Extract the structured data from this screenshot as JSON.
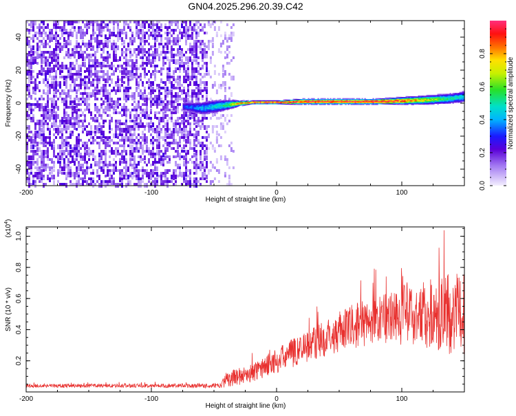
{
  "title": "GN04.2025.296.20.39.C42",
  "chart_data": [
    {
      "type": "heatmap",
      "title": "GN04.2025.296.20.39.C42",
      "xlabel": "Height of straight line (km)",
      "ylabel": "Frequency (Hz)",
      "xlim": [
        -200,
        150
      ],
      "ylim": [
        -50,
        50
      ],
      "x_ticks": [
        -200,
        -100,
        0,
        100
      ],
      "x_tick_labels": [
        "-200",
        "-100",
        "0",
        "100"
      ],
      "y_ticks": [
        -40,
        -20,
        0,
        20,
        40
      ],
      "y_tick_labels": [
        "-40",
        "-20",
        "0",
        "20",
        "40"
      ],
      "colorbar": {
        "label": "Normalized spectral amplitude",
        "range": [
          0,
          1
        ],
        "ticks": [
          0,
          0.2,
          0.4,
          0.6,
          0.8
        ],
        "tick_labels": [
          "0.0",
          "0.2",
          "0.4",
          "0.6",
          "0.8"
        ]
      },
      "noise_region": {
        "x_range": [
          -200,
          -55
        ],
        "freq_range": [
          -50,
          50
        ],
        "amplitude": [
          0.05,
          0.25
        ]
      },
      "sparse_noise_region": {
        "x_range": [
          -55,
          -35
        ],
        "freq_range": [
          -50,
          50
        ],
        "amplitude": [
          0.02,
          0.12
        ]
      },
      "ridge": {
        "x": [
          -75,
          -60,
          -50,
          -40,
          -30,
          -20,
          -10,
          0,
          20,
          40,
          60,
          80,
          100,
          120,
          140,
          150
        ],
        "freq": [
          -2,
          -3,
          -2,
          -1,
          0,
          0.5,
          0.5,
          0.5,
          1,
          1,
          1,
          1,
          1.5,
          2,
          3,
          4
        ],
        "peak_amplitude": [
          0.3,
          0.4,
          0.45,
          0.55,
          0.8,
          0.9,
          0.95,
          0.95,
          0.95,
          0.95,
          0.95,
          0.95,
          0.9,
          0.7,
          0.5,
          0.45
        ],
        "half_width_hz": [
          3,
          4,
          4,
          3,
          1.5,
          1,
          1,
          1,
          1.5,
          1.5,
          1.5,
          1.5,
          2,
          2.5,
          3,
          3.5
        ]
      },
      "grid": false
    },
    {
      "type": "line",
      "xlabel": "Height of straight line (km)",
      "ylabel": "SNR (10 * v/v)",
      "y_multiplier": "(x10",
      "y_multiplier_exponent": "4",
      "y_multiplier_close": ")",
      "xlim": [
        -200,
        150
      ],
      "ylim": [
        0,
        1.06
      ],
      "x_ticks": [
        -200,
        -100,
        0,
        100
      ],
      "x_tick_labels": [
        "-200",
        "-100",
        "0",
        "100"
      ],
      "y_ticks": [
        0.2,
        0.4,
        0.6,
        0.8,
        1.0
      ],
      "y_tick_labels": [
        "0.2",
        "0.4",
        "0.6",
        "0.8",
        "1.0"
      ],
      "series": [
        {
          "color": "#e8302e",
          "envelope_x": [
            -200,
            -100,
            -45,
            -40,
            -20,
            0,
            20,
            40,
            60,
            80,
            100,
            120,
            140,
            150
          ],
          "envelope_mean": [
            0.04,
            0.04,
            0.04,
            0.08,
            0.12,
            0.2,
            0.28,
            0.35,
            0.42,
            0.46,
            0.5,
            0.5,
            0.5,
            0.5
          ],
          "envelope_spread": [
            0.012,
            0.012,
            0.015,
            0.05,
            0.06,
            0.08,
            0.1,
            0.12,
            0.14,
            0.16,
            0.2,
            0.22,
            0.26,
            0.26
          ]
        }
      ],
      "grid": false
    }
  ]
}
